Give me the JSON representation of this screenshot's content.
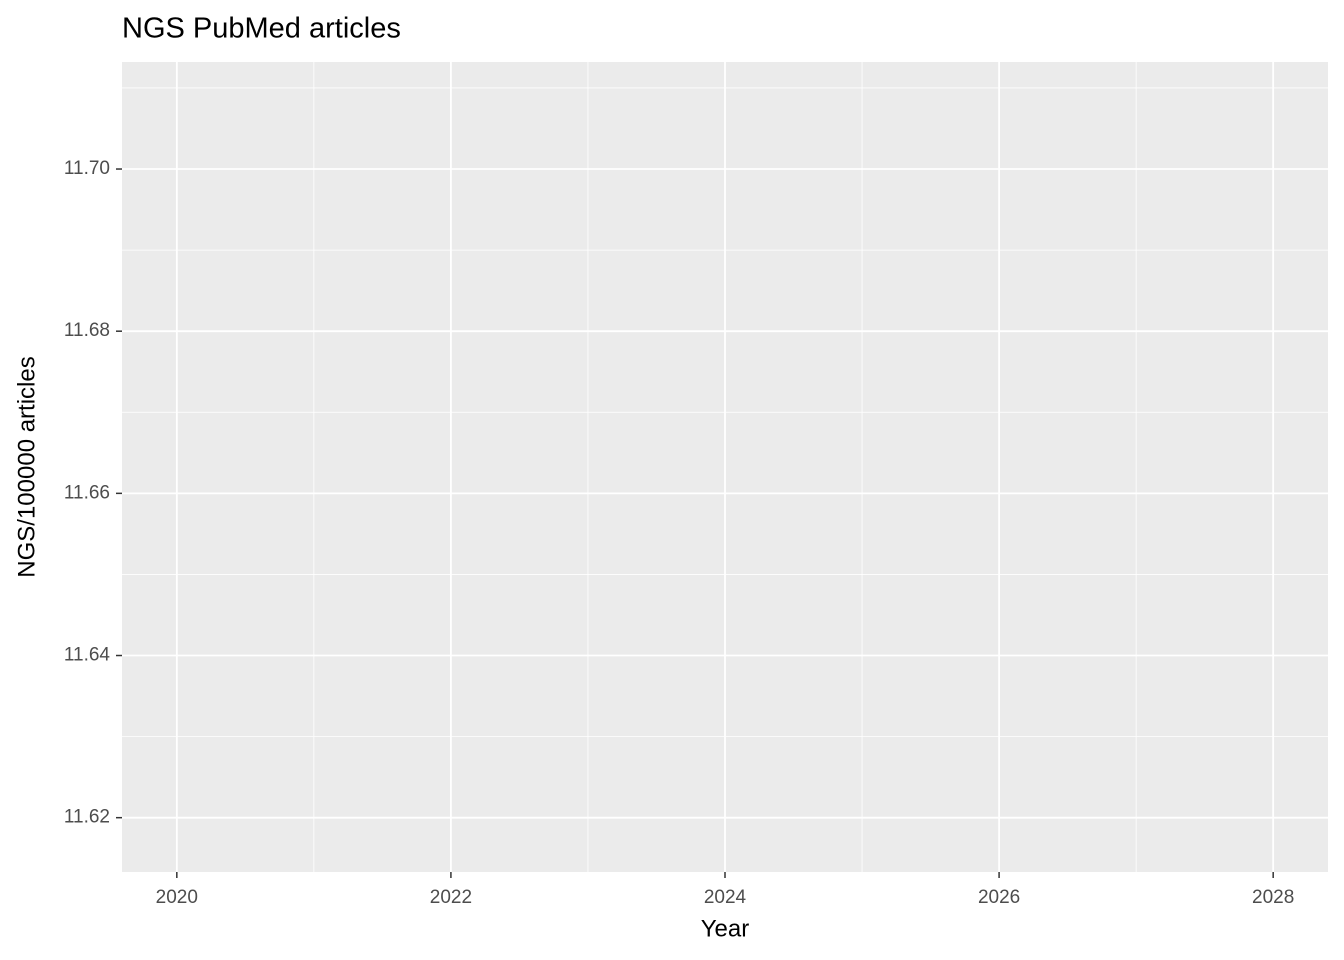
{
  "chart_data": {
    "type": "line",
    "title": "NGS PubMed articles",
    "x_label": "Year",
    "y_label": "NGS/100000 articles",
    "series": [],
    "xlim": [
      2019.6,
      2028.4
    ],
    "xticks": [
      2020,
      2022,
      2024,
      2026,
      2028
    ],
    "ylim": [
      11.6133,
      11.7132
    ],
    "yticks": [
      {
        "value": 11.62,
        "label": "11.62"
      },
      {
        "value": 11.64,
        "label": "11.64"
      },
      {
        "value": 11.66,
        "label": "11.66"
      },
      {
        "value": 11.68,
        "label": "11.68"
      },
      {
        "value": 11.7,
        "label": "11.70"
      }
    ],
    "grid": true
  }
}
